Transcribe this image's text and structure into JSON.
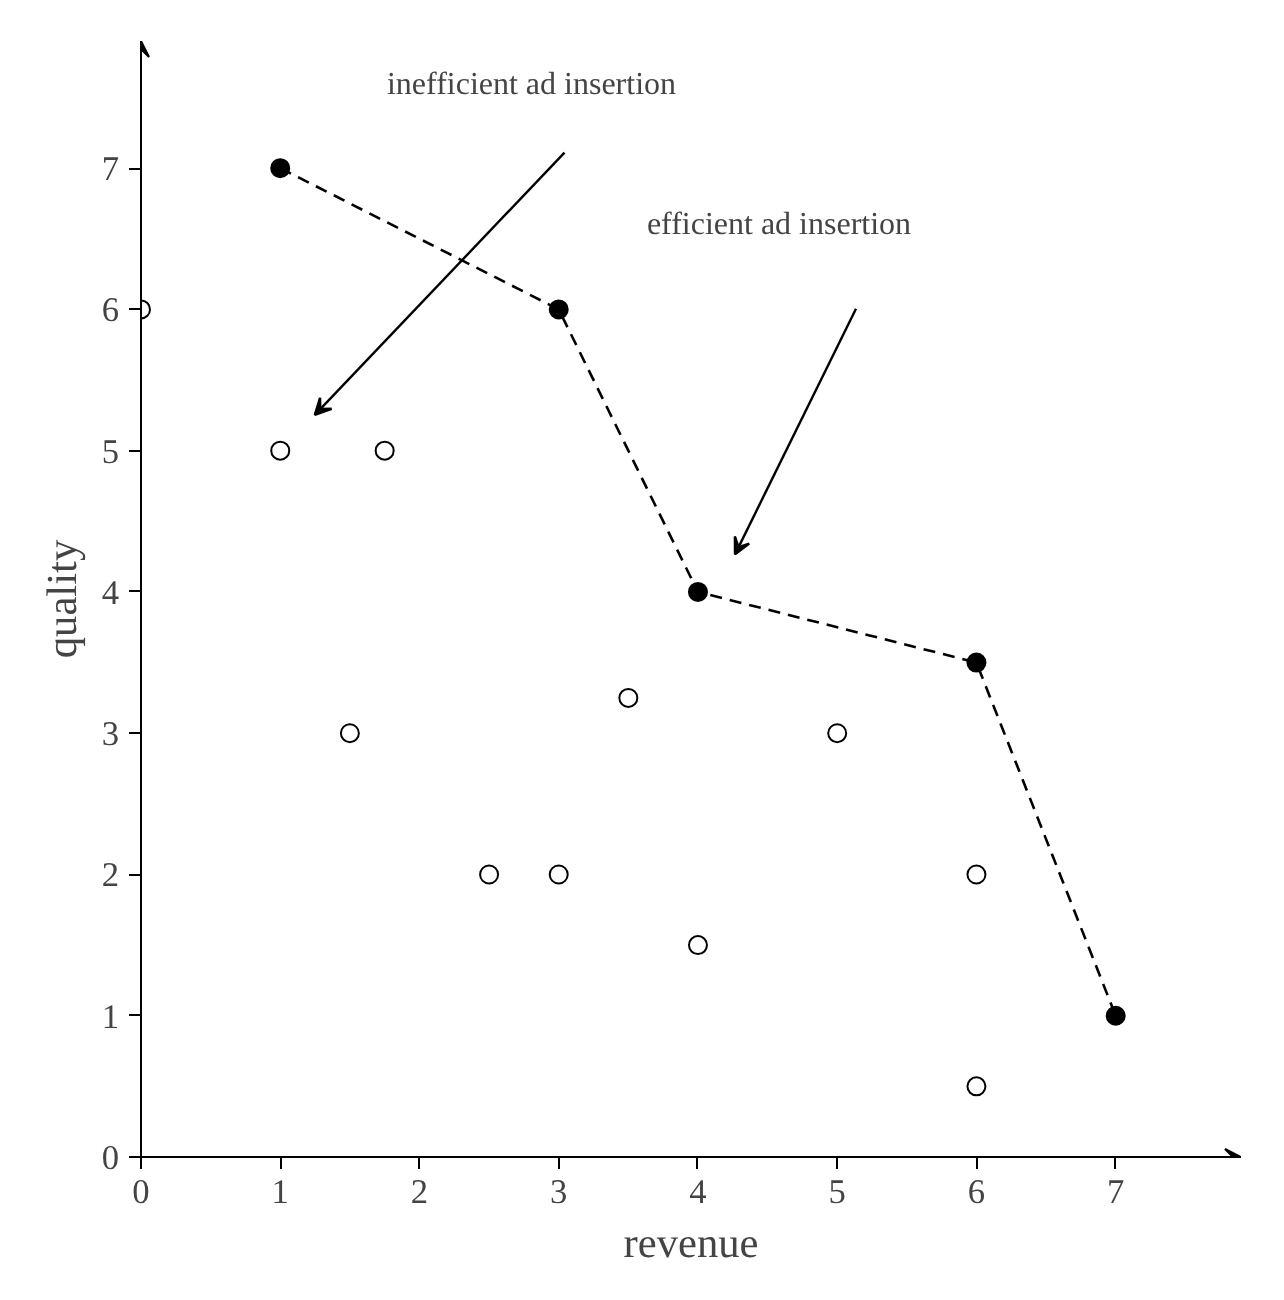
{
  "chart_data": {
    "type": "scatter",
    "xlabel": "revenue",
    "ylabel": "quality",
    "xlim": [
      0,
      7.9
    ],
    "ylim": [
      0,
      7.9
    ],
    "xticks": [
      0,
      1,
      2,
      3,
      4,
      5,
      6,
      7
    ],
    "yticks": [
      0,
      1,
      2,
      3,
      4,
      5,
      6,
      7
    ],
    "grid": false,
    "series": [
      {
        "marker": "circle",
        "color": "#ffffff",
        "x": [
          0,
          1,
          1.75,
          1.5,
          2.5,
          3,
          3.5,
          4,
          5,
          6,
          6
        ],
        "values": [
          6,
          5,
          5,
          3,
          2,
          2,
          3.25,
          1.5,
          3,
          2,
          0.5
        ]
      },
      {
        "type": "line",
        "marker": "circle",
        "line_style": "dashed",
        "color": "#000000",
        "x": [
          1,
          3,
          4,
          6,
          7
        ],
        "values": [
          7,
          6,
          4,
          3.5,
          1
        ]
      }
    ],
    "annotations": [
      "inefficient ad insertion",
      "efficient ad insertion"
    ]
  }
}
